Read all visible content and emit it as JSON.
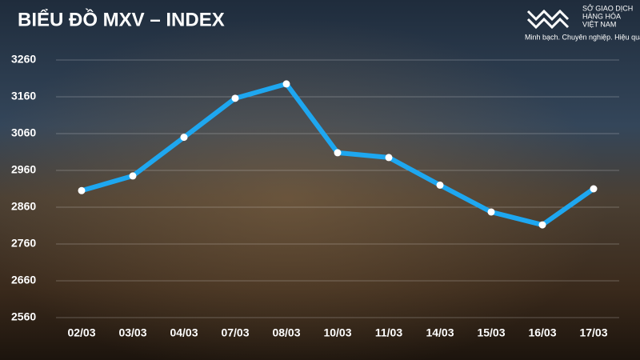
{
  "chart_data": {
    "type": "line",
    "title": "BIỂU ĐỒ MXV – INDEX",
    "categories": [
      "02/03",
      "03/03",
      "04/03",
      "07/03",
      "08/03",
      "10/03",
      "11/03",
      "14/03",
      "15/03",
      "16/03",
      "17/03"
    ],
    "series": [
      {
        "name": null,
        "color": "#1ea7f0",
        "values": [
          2905,
          2945,
          3050,
          3156,
          3195,
          3008,
          2995,
          2920,
          2847,
          2812,
          2910
        ]
      }
    ],
    "ylim": [
      2560,
      3260
    ],
    "yticks": [
      2560,
      2660,
      2760,
      2860,
      2960,
      3060,
      3160,
      3260
    ],
    "grid": true
  },
  "brand": {
    "name_lines": [
      "SỞ GIAO DỊCH",
      "HÀNG HÓA",
      "VIỆT NAM"
    ],
    "tagline": "Minh bạch. Chuyên nghiệp. Hiệu quả"
  }
}
